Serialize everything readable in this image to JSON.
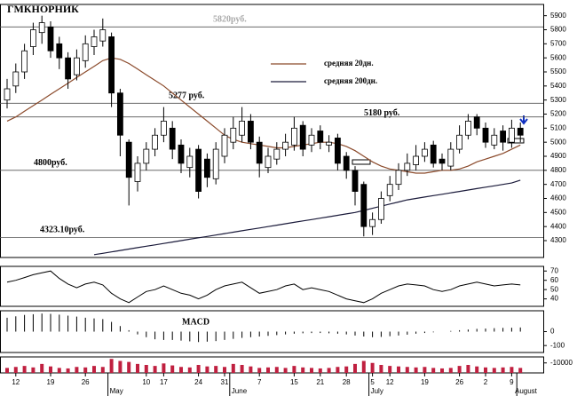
{
  "chart_data": {
    "type": "candlestick",
    "title": "ГМКНОРНИК",
    "grid": false,
    "categories": [
      null,
      "12",
      null,
      null,
      null,
      "19",
      null,
      null,
      null,
      "26",
      null,
      null,
      null,
      null,
      null,
      null,
      "10",
      null,
      "17",
      null,
      null,
      null,
      "24",
      null,
      null,
      "31",
      null,
      null,
      null,
      "7",
      null,
      null,
      null,
      "15",
      null,
      null,
      "21",
      null,
      null,
      "28",
      null,
      null,
      "5",
      null,
      "12",
      null,
      null,
      null,
      "19",
      null,
      null,
      null,
      "26",
      null,
      null,
      "2",
      null,
      null,
      "9",
      null
    ],
    "month_labels": [
      null,
      null,
      null,
      null,
      null,
      null,
      null,
      null,
      null,
      null,
      null,
      null,
      "May",
      null,
      null,
      null,
      null,
      null,
      null,
      null,
      null,
      null,
      null,
      null,
      null,
      null,
      "June",
      null,
      null,
      null,
      null,
      null,
      null,
      null,
      null,
      null,
      null,
      null,
      null,
      null,
      null,
      null,
      "July",
      null,
      null,
      null,
      null,
      null,
      null,
      null,
      null,
      null,
      null,
      null,
      null,
      null,
      null,
      null,
      null,
      "August"
    ],
    "open": [
      5300,
      5400,
      5500,
      5680,
      5780,
      5820,
      5700,
      5600,
      5480,
      5580,
      5680,
      5720,
      5750,
      5350,
      5000,
      4720,
      4850,
      4950,
      5050,
      5100,
      4980,
      4820,
      4950,
      4880,
      4740,
      4900,
      5000,
      5050,
      5150,
      5000,
      4820,
      4880,
      4950,
      4980,
      5120,
      4980,
      5080,
      4980,
      5030,
      4900,
      4800,
      4700,
      4400,
      4450,
      4620,
      4700,
      4800,
      4840,
      4900,
      4980,
      4880,
      4830,
      4950,
      5050,
      5180,
      5100,
      4980,
      5080,
      5000,
      5100
    ],
    "high": [
      5450,
      5560,
      5700,
      5850,
      5900,
      5860,
      5750,
      5640,
      5660,
      5760,
      5800,
      5880,
      5780,
      5380,
      5020,
      4900,
      5000,
      5100,
      5250,
      5150,
      5020,
      4960,
      4980,
      4920,
      5000,
      5100,
      5180,
      5250,
      5200,
      5040,
      4960,
      5000,
      5060,
      5180,
      5150,
      5100,
      5120,
      5050,
      5060,
      4930,
      4830,
      4720,
      4500,
      4650,
      4760,
      4850,
      4920,
      4980,
      5000,
      5010,
      4920,
      5000,
      5120,
      5200,
      5200,
      5140,
      5100,
      5120,
      5160,
      5140
    ],
    "low": [
      5240,
      5350,
      5450,
      5620,
      5700,
      5600,
      5520,
      5380,
      5440,
      5530,
      5620,
      5680,
      5250,
      4900,
      4550,
      4650,
      4800,
      4900,
      5000,
      4880,
      4780,
      4750,
      4600,
      4680,
      4700,
      4850,
      4950,
      5000,
      4950,
      4750,
      4780,
      4840,
      4900,
      4940,
      4900,
      4930,
      4950,
      4930,
      4800,
      4740,
      4550,
      4330,
      4340,
      4420,
      4580,
      4660,
      4760,
      4800,
      4860,
      4820,
      4800,
      4800,
      4920,
      5020,
      5050,
      4960,
      4950,
      4940,
      4960,
      5000
    ],
    "close": [
      5380,
      5500,
      5650,
      5800,
      5850,
      5650,
      5600,
      5450,
      5600,
      5700,
      5750,
      5800,
      5350,
      5050,
      4750,
      4850,
      4950,
      5050,
      5150,
      4950,
      4850,
      4900,
      4650,
      4750,
      4950,
      5050,
      5100,
      5150,
      5000,
      4850,
      4900,
      4950,
      5000,
      5100,
      4950,
      5050,
      5000,
      5000,
      4850,
      4800,
      4650,
      4400,
      4450,
      4600,
      4700,
      4800,
      4850,
      4900,
      4950,
      4850,
      4850,
      4950,
      5050,
      5150,
      5100,
      5000,
      5050,
      5000,
      5100,
      5050
    ],
    "ylim": [
      4180,
      5980
    ],
    "yticks": [
      4300,
      4400,
      4500,
      4600,
      4700,
      4800,
      4900,
      5000,
      5100,
      5200,
      5300,
      5400,
      5500,
      5600,
      5700,
      5800,
      5900
    ],
    "up_color": "#ffffff",
    "down_color": "#000000",
    "series": [
      {
        "name": "средняя 20дн.",
        "color": "#8b4a2b",
        "values": [
          5150,
          5180,
          5220,
          5260,
          5300,
          5340,
          5380,
          5420,
          5460,
          5500,
          5540,
          5580,
          5600,
          5590,
          5560,
          5520,
          5480,
          5440,
          5400,
          5350,
          5300,
          5250,
          5200,
          5150,
          5100,
          5050,
          5020,
          5000,
          4990,
          4980,
          4970,
          4960,
          4960,
          4970,
          4980,
          4990,
          5000,
          5000,
          4990,
          4970,
          4940,
          4900,
          4860,
          4830,
          4810,
          4800,
          4790,
          4780,
          4780,
          4790,
          4800,
          4800,
          4810,
          4830,
          4860,
          4880,
          4900,
          4920,
          4950,
          4980
        ]
      },
      {
        "name": "средняя 200дн.",
        "color": "#1a1a3a",
        "values": [
          null,
          null,
          null,
          null,
          null,
          null,
          null,
          null,
          null,
          null,
          4200,
          4210,
          4220,
          4230,
          4240,
          4250,
          4260,
          4270,
          4280,
          4290,
          4300,
          4310,
          4320,
          4330,
          4340,
          4350,
          4360,
          4370,
          4380,
          4390,
          4400,
          4410,
          4420,
          4430,
          4440,
          4450,
          4460,
          4470,
          4480,
          4490,
          4500,
          4515,
          4530,
          4545,
          4560,
          4575,
          4590,
          4600,
          4610,
          4620,
          4630,
          4640,
          4650,
          4660,
          4670,
          4680,
          4690,
          4700,
          4710,
          4730
        ]
      }
    ],
    "levels": [
      {
        "value": 5820,
        "label": "5820руб."
      },
      {
        "value": 5277,
        "label": "5277 руб."
      },
      {
        "value": 5180,
        "label": "5180 руб."
      },
      {
        "value": 4800,
        "label": "4800руб."
      },
      {
        "value": 4323.1,
        "label": "4323.10руб."
      }
    ],
    "oscillator": {
      "values": [
        58,
        60,
        63,
        66,
        68,
        70,
        62,
        56,
        52,
        56,
        58,
        55,
        46,
        40,
        36,
        42,
        48,
        50,
        54,
        50,
        46,
        44,
        40,
        44,
        50,
        54,
        56,
        58,
        52,
        46,
        48,
        50,
        54,
        56,
        50,
        52,
        50,
        48,
        44,
        40,
        38,
        36,
        40,
        46,
        50,
        54,
        56,
        55,
        54,
        50,
        48,
        50,
        54,
        56,
        58,
        56,
        54,
        55,
        56,
        55
      ],
      "ylim": [
        32,
        75
      ],
      "yticks": [
        40,
        50,
        60,
        70
      ]
    },
    "macd": {
      "title": "MACD",
      "values": [
        100,
        110,
        120,
        125,
        130,
        128,
        122,
        115,
        108,
        100,
        95,
        90,
        70,
        40,
        10,
        -20,
        -40,
        -55,
        -60,
        -60,
        -65,
        -70,
        -75,
        -72,
        -68,
        -60,
        -52,
        -45,
        -40,
        -35,
        -30,
        -25,
        -20,
        -15,
        -12,
        -10,
        -10,
        -12,
        -15,
        -20,
        -28,
        -35,
        -40,
        -38,
        -33,
        -28,
        -22,
        -15,
        -10,
        -5,
        0,
        5,
        10,
        15,
        20,
        22,
        25,
        27,
        28,
        30
      ],
      "ylim": [
        -150,
        150
      ],
      "yticks": [
        0,
        -100
      ]
    },
    "volume": {
      "values": [
        5000,
        6000,
        7000,
        5500,
        9000,
        6500,
        5000,
        4500,
        6000,
        5500,
        7000,
        6000,
        14000,
        12000,
        11000,
        9000,
        8000,
        7000,
        9500,
        7500,
        6000,
        5500,
        8000,
        6500,
        7000,
        6000,
        9000,
        8000,
        6500,
        5000,
        5500,
        6000,
        5000,
        7000,
        5500,
        5000,
        4500,
        5000,
        6000,
        6500,
        9000,
        12000,
        10000,
        8000,
        7000,
        6500,
        6000,
        5500,
        6000,
        5000,
        4500,
        5000,
        7000,
        8000,
        6500,
        5500,
        5000,
        5500,
        6000,
        5000
      ],
      "ylim": [
        0,
        16000
      ],
      "yticks": [
        {
          "value": 10000,
          "label": "-10000"
        }
      ]
    }
  }
}
